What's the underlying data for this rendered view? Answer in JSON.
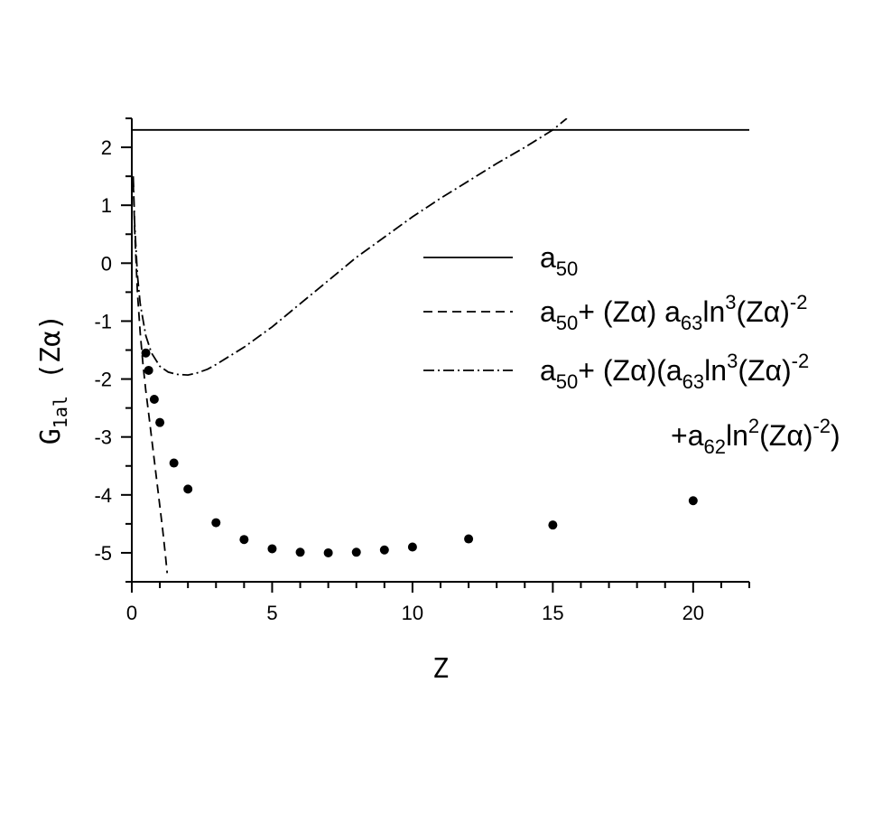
{
  "chart_data": {
    "type": "line",
    "xlabel": "Z",
    "ylabel": {
      "main": "G",
      "sub": "1al",
      "tail": " (Zα)"
    },
    "xlim": [
      0,
      22
    ],
    "ylim": [
      -5.5,
      2.5
    ],
    "x_ticks": [
      0,
      5,
      10,
      15,
      20
    ],
    "y_ticks": [
      -5,
      -4,
      -3,
      -2,
      -1,
      0,
      1,
      2
    ],
    "x_tick_labels": [
      "0",
      "5",
      "10",
      "15",
      "20"
    ],
    "y_tick_labels": [
      "-5",
      "-4",
      "-3",
      "-2",
      "-1",
      "0",
      "1",
      "2"
    ],
    "grid": false,
    "legend_position": "right",
    "series": [
      {
        "style": "solid",
        "legend": "a_{50}",
        "x": [
          0,
          22
        ],
        "y": [
          2.3,
          2.3
        ]
      },
      {
        "style": "dashed",
        "legend": "a_{50}+ (Zα) a_{63}ln^{3}(Zα)^{-2}",
        "x": [
          0.05,
          0.1,
          0.2,
          0.3,
          0.4,
          0.5,
          0.6,
          0.7,
          0.8,
          0.9,
          1.0,
          1.1,
          1.2,
          1.26
        ],
        "y": [
          1.4,
          0.6,
          -0.5,
          -1.2,
          -1.75,
          -2.2,
          -2.6,
          -3.0,
          -3.4,
          -3.8,
          -4.2,
          -4.6,
          -5.05,
          -5.35
        ]
      },
      {
        "style": "dash-dot",
        "legend": "a_{50}+ (Zα)(a_{63}ln^{3}(Zα)^{-2}\n+a_{62}ln^{2}(Zα)^{-2})",
        "x": [
          0.05,
          0.1,
          0.2,
          0.3,
          0.5,
          0.7,
          1.0,
          1.3,
          1.6,
          2.0,
          2.3,
          2.7,
          3.0,
          3.5,
          4.0,
          5.0,
          6.0,
          7.0,
          8.0,
          9.0,
          10.0,
          11.0,
          12.0,
          13.0,
          14.0,
          15.0,
          15.5
        ],
        "y": [
          1.5,
          0.7,
          -0.2,
          -0.7,
          -1.25,
          -1.55,
          -1.78,
          -1.88,
          -1.92,
          -1.93,
          -1.9,
          -1.83,
          -1.75,
          -1.6,
          -1.45,
          -1.1,
          -0.7,
          -0.3,
          0.1,
          0.45,
          0.8,
          1.12,
          1.42,
          1.72,
          2.0,
          2.3,
          2.5
        ]
      },
      {
        "style": "points",
        "x": [
          0.5,
          0.6,
          0.8,
          1.0,
          1.5,
          2.0,
          3.0,
          4.0,
          5.0,
          6.0,
          7.0,
          8.0,
          9.0,
          10.0,
          12.0,
          15.0,
          20.0
        ],
        "y": [
          -1.55,
          -1.85,
          -2.35,
          -2.75,
          -3.45,
          -3.9,
          -4.48,
          -4.77,
          -4.93,
          -4.99,
          -5.0,
          -4.99,
          -4.95,
          -4.9,
          -4.76,
          -4.52,
          -4.1
        ]
      }
    ]
  }
}
